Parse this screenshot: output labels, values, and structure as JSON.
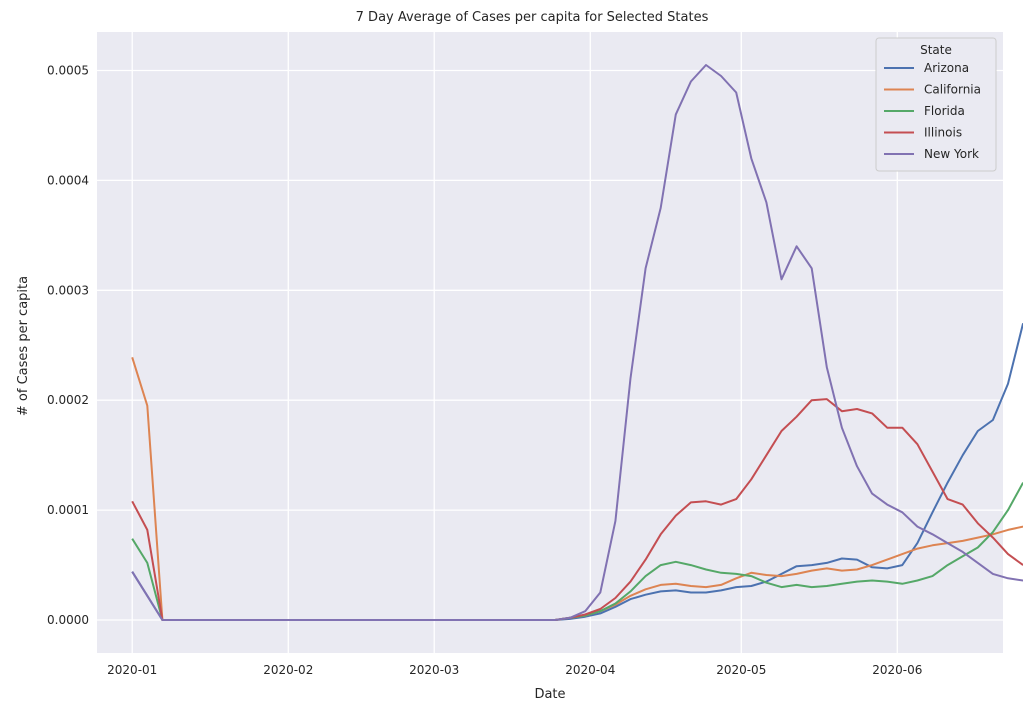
{
  "chart_data": {
    "type": "line",
    "title": "7 Day Average of Cases per capita for Selected States",
    "xlabel": "Date",
    "ylabel": "# of Cases per capita",
    "x_start": "2020-01-01",
    "x_step_days": 3,
    "xlim": [
      "2019-12-25",
      "2020-06-22"
    ],
    "ylim": [
      -3e-05,
      0.000535
    ],
    "x_ticks": [
      "2020-01-01",
      "2020-02-01",
      "2020-03-01",
      "2020-04-01",
      "2020-05-01",
      "2020-06-01"
    ],
    "x_tick_labels": [
      "2020-01",
      "2020-02",
      "2020-03",
      "2020-04",
      "2020-05",
      "2020-06"
    ],
    "y_ticks": [
      0,
      0.0001,
      0.0002,
      0.0003,
      0.0004,
      0.0005
    ],
    "y_tick_labels": [
      "0.0000",
      "0.0001",
      "0.0002",
      "0.0003",
      "0.0004",
      "0.0005"
    ],
    "grid": true,
    "legend": {
      "title": "State",
      "position": "top-right"
    },
    "series": [
      {
        "name": "Arizona",
        "color": "#4c72b0",
        "values": [
          4.4e-05,
          2.2e-05,
          0,
          0,
          0,
          0,
          0,
          0,
          0,
          0,
          0,
          0,
          0,
          0,
          0,
          0,
          0,
          0,
          0,
          0,
          0,
          0,
          0,
          0,
          0,
          0,
          0,
          0,
          0,
          1e-06,
          3e-06,
          6e-06,
          1.2e-05,
          1.9e-05,
          2.3e-05,
          2.6e-05,
          2.7e-05,
          2.5e-05,
          2.5e-05,
          2.7e-05,
          3e-05,
          3.1e-05,
          3.5e-05,
          4.2e-05,
          4.9e-05,
          5e-05,
          5.2e-05,
          5.6e-05,
          5.5e-05,
          4.8e-05,
          4.7e-05,
          5e-05,
          7e-05,
          9.8e-05,
          0.000125,
          0.00015,
          0.000172,
          0.000182,
          0.000215,
          0.00027
        ]
      },
      {
        "name": "California",
        "color": "#dd8452",
        "values": [
          0.000239,
          0.000195,
          0,
          0,
          0,
          0,
          0,
          0,
          0,
          0,
          0,
          0,
          0,
          0,
          0,
          0,
          0,
          0,
          0,
          0,
          0,
          0,
          0,
          0,
          0,
          0,
          0,
          0,
          0,
          2e-06,
          4e-06,
          8e-06,
          1.4e-05,
          2.2e-05,
          2.8e-05,
          3.2e-05,
          3.3e-05,
          3.1e-05,
          3e-05,
          3.2e-05,
          3.8e-05,
          4.3e-05,
          4.1e-05,
          4e-05,
          4.2e-05,
          4.5e-05,
          4.7e-05,
          4.5e-05,
          4.6e-05,
          5e-05,
          5.5e-05,
          6e-05,
          6.5e-05,
          6.8e-05,
          7e-05,
          7.2e-05,
          7.5e-05,
          7.8e-05,
          8.2e-05,
          8.5e-05
        ]
      },
      {
        "name": "Florida",
        "color": "#55a868",
        "values": [
          7.4e-05,
          5.2e-05,
          0,
          0,
          0,
          0,
          0,
          0,
          0,
          0,
          0,
          0,
          0,
          0,
          0,
          0,
          0,
          0,
          0,
          0,
          0,
          0,
          0,
          0,
          0,
          0,
          0,
          0,
          0,
          2e-06,
          4e-06,
          8e-06,
          1.5e-05,
          2.6e-05,
          4e-05,
          5e-05,
          5.3e-05,
          5e-05,
          4.6e-05,
          4.3e-05,
          4.2e-05,
          4e-05,
          3.4e-05,
          3e-05,
          3.2e-05,
          3e-05,
          3.1e-05,
          3.3e-05,
          3.5e-05,
          3.6e-05,
          3.5e-05,
          3.3e-05,
          3.6e-05,
          4e-05,
          5e-05,
          5.8e-05,
          6.6e-05,
          8e-05,
          0.0001,
          0.000125
        ]
      },
      {
        "name": "Illinois",
        "color": "#c44e52",
        "values": [
          0.000108,
          8.2e-05,
          0,
          0,
          0,
          0,
          0,
          0,
          0,
          0,
          0,
          0,
          0,
          0,
          0,
          0,
          0,
          0,
          0,
          0,
          0,
          0,
          0,
          0,
          0,
          0,
          0,
          0,
          0,
          2e-06,
          5e-06,
          1e-05,
          2e-05,
          3.5e-05,
          5.5e-05,
          7.8e-05,
          9.5e-05,
          0.000107,
          0.000108,
          0.000105,
          0.00011,
          0.000128,
          0.00015,
          0.000172,
          0.000185,
          0.0002,
          0.000201,
          0.00019,
          0.000192,
          0.000188,
          0.000175,
          0.000175,
          0.00016,
          0.000135,
          0.00011,
          0.000105,
          8.8e-05,
          7.5e-05,
          6e-05,
          5e-05
        ]
      },
      {
        "name": "New York",
        "color": "#8172b2",
        "values": [
          4.4e-05,
          2.2e-05,
          0,
          0,
          0,
          0,
          0,
          0,
          0,
          0,
          0,
          0,
          0,
          0,
          0,
          0,
          0,
          0,
          0,
          0,
          0,
          0,
          0,
          0,
          0,
          0,
          0,
          0,
          0,
          2e-06,
          8e-06,
          2.5e-05,
          9e-05,
          0.00022,
          0.00032,
          0.000375,
          0.00046,
          0.00049,
          0.000505,
          0.000495,
          0.00048,
          0.00042,
          0.00038,
          0.00031,
          0.00034,
          0.00032,
          0.00023,
          0.000175,
          0.00014,
          0.000115,
          0.000105,
          9.8e-05,
          8.5e-05,
          7.8e-05,
          7e-05,
          6.2e-05,
          5.2e-05,
          4.2e-05,
          3.8e-05,
          3.6e-05
        ]
      }
    ]
  }
}
